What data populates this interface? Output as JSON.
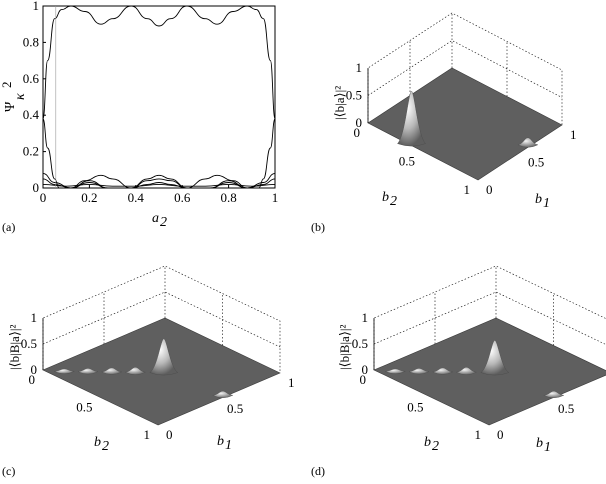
{
  "panels": {
    "a": {
      "label": "(a)",
      "ylabel_main": "Ψ",
      "ylabel_sub": "κ",
      "ylabel_sup": "2",
      "xlabel_main": "a",
      "xlabel_sub": "2"
    },
    "b": {
      "label": "(b)",
      "zlabel": "|⟨b|a⟩|²"
    },
    "c": {
      "label": "(c)",
      "zlabel": "|⟨b|B|a⟩|²"
    },
    "d": {
      "label": "(d)",
      "zlabel": "|⟨b|B|a⟩|²"
    }
  },
  "surface_axes": {
    "b1_label_main": "b",
    "b1_label_sub": "1",
    "b2_label_main": "b",
    "b2_label_sub": "2",
    "b1_ticks": [
      "0",
      "0.5",
      "1"
    ],
    "b2_ticks": [
      "1",
      "0.5",
      "0"
    ],
    "z_ticks": [
      "0",
      "0.5",
      "1"
    ]
  },
  "chart_data": [
    {
      "panel": "a",
      "type": "line",
      "xlim": [
        0,
        1
      ],
      "ylim": [
        0,
        1
      ],
      "x_ticks": [
        "0",
        "0.2",
        "0.4",
        "0.6",
        "0.8",
        "1"
      ],
      "y_ticks": [
        "0",
        "0.2",
        "0.4",
        "0.6",
        "0.8",
        "1"
      ],
      "grid": false,
      "series": [
        {
          "x": [
            0,
            0.02,
            0.05,
            0.08,
            0.12,
            0.18,
            0.25,
            0.3,
            0.38,
            0.45,
            0.5,
            0.55,
            0.62,
            0.7,
            0.75,
            0.82,
            0.88,
            0.92,
            0.95,
            0.98,
            1
          ],
          "y": [
            0.38,
            0.7,
            0.93,
            0.98,
            1.0,
            0.97,
            0.9,
            0.93,
            1.0,
            0.93,
            0.89,
            0.93,
            1.0,
            0.93,
            0.9,
            0.97,
            1.0,
            0.98,
            0.93,
            0.7,
            0.38
          ]
        },
        {
          "x": [
            0,
            0.02,
            0.05,
            0.07,
            0.12,
            0.18,
            0.25,
            0.3,
            0.38,
            0.45,
            0.5,
            0.55,
            0.62,
            0.7,
            0.75,
            0.82,
            0.88,
            0.93,
            0.95,
            0.98,
            1
          ],
          "y": [
            0.38,
            0.22,
            0.05,
            0.0,
            0.0,
            0.04,
            0.07,
            0.05,
            0.0,
            0.05,
            0.07,
            0.05,
            0.0,
            0.05,
            0.07,
            0.04,
            0.0,
            0.0,
            0.05,
            0.22,
            0.38
          ]
        },
        {
          "x": [
            0,
            0.05,
            0.12,
            0.2,
            0.28,
            0.38,
            0.45,
            0.5,
            0.55,
            0.62,
            0.72,
            0.8,
            0.88,
            0.95,
            1
          ],
          "y": [
            0.08,
            0.03,
            0.0,
            0.04,
            0.0,
            0.0,
            0.04,
            0.05,
            0.04,
            0.0,
            0.0,
            0.04,
            0.0,
            0.03,
            0.08
          ]
        },
        {
          "x": [
            0,
            0.05,
            0.12,
            0.2,
            0.28,
            0.38,
            0.45,
            0.5,
            0.55,
            0.62,
            0.72,
            0.8,
            0.88,
            0.95,
            1
          ],
          "y": [
            0.05,
            0.02,
            0.0,
            0.03,
            0.0,
            0.0,
            0.02,
            0.03,
            0.02,
            0.0,
            0.0,
            0.03,
            0.0,
            0.02,
            0.05
          ]
        },
        {
          "x": [
            0,
            0.1,
            0.2,
            0.3,
            0.4,
            0.5,
            0.6,
            0.7,
            0.8,
            0.9,
            1
          ],
          "y": [
            0.02,
            0.01,
            0.02,
            0.01,
            0.01,
            0.02,
            0.01,
            0.01,
            0.02,
            0.01,
            0.02
          ]
        },
        {
          "x": [
            0.055,
            0.055
          ],
          "y": [
            0.0,
            1.0
          ]
        }
      ]
    },
    {
      "panel": "b",
      "type": "surface",
      "xlabel": "b1",
      "ylabel": "b2",
      "xlim": [
        0,
        1
      ],
      "ylim": [
        0,
        1
      ],
      "zlim": [
        0,
        1
      ],
      "peaks": [
        {
          "b1": 0.62,
          "b2": 0.02,
          "height": 0.95
        },
        {
          "b1": 0.02,
          "b2": 0.62,
          "height": 0.08
        }
      ]
    },
    {
      "panel": "c",
      "type": "surface",
      "xlabel": "b1",
      "ylabel": "b2",
      "xlim": [
        0,
        1
      ],
      "ylim": [
        0,
        1
      ],
      "zlim": [
        0,
        1
      ],
      "peaks": [
        {
          "b1": 0.48,
          "b2": 0.5,
          "height": 0.65
        },
        {
          "b1": 0.02,
          "b2": 0.55,
          "height": 0.05
        },
        {
          "b1": 0.6,
          "b2": 0.38,
          "height": 0.06
        },
        {
          "b1": 0.7,
          "b2": 0.28,
          "height": 0.05
        },
        {
          "b1": 0.8,
          "b2": 0.18,
          "height": 0.04
        },
        {
          "b1": 0.9,
          "b2": 0.08,
          "height": 0.03
        }
      ]
    },
    {
      "panel": "d",
      "type": "surface",
      "xlabel": "b1",
      "ylabel": "b2",
      "xlim": [
        0,
        1
      ],
      "ylim": [
        0,
        1
      ],
      "zlim": [
        0,
        1
      ],
      "peaks": [
        {
          "b1": 0.48,
          "b2": 0.5,
          "height": 0.62
        },
        {
          "b1": 0.02,
          "b2": 0.55,
          "height": 0.05
        },
        {
          "b1": 0.6,
          "b2": 0.38,
          "height": 0.06
        },
        {
          "b1": 0.7,
          "b2": 0.28,
          "height": 0.05
        },
        {
          "b1": 0.8,
          "b2": 0.18,
          "height": 0.04
        },
        {
          "b1": 0.9,
          "b2": 0.08,
          "height": 0.03
        }
      ]
    }
  ]
}
